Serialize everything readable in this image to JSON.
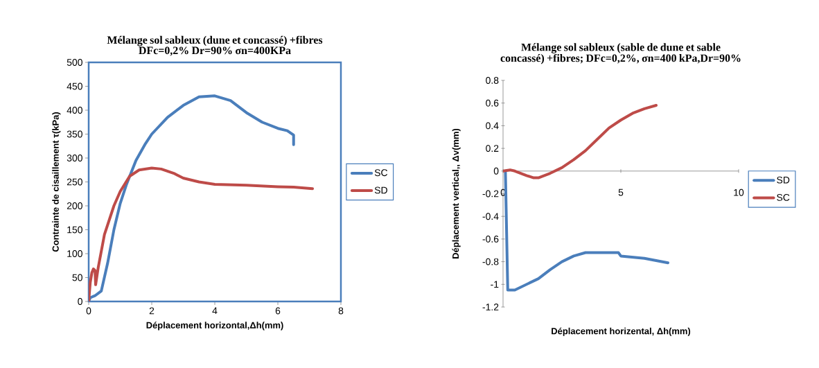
{
  "chart_data": [
    {
      "type": "line",
      "title": "Mélange sol sableux (dune et concassé) +fibres",
      "subtitle": "DFc=0,2% Dr=90% σn=400KPa",
      "xlabel": "Déplacement horizontal,Δh(mm)",
      "ylabel": "Contrainte de cisaillement τ(kPa)",
      "xlim": [
        0,
        8
      ],
      "ylim": [
        0,
        500
      ],
      "xticks": [
        0,
        2,
        4,
        6,
        8
      ],
      "yticks": [
        0,
        50,
        100,
        150,
        200,
        250,
        300,
        350,
        400,
        450,
        500
      ],
      "legend": "right",
      "series": [
        {
          "name": "SC",
          "color": "#4a7ebb",
          "x": [
            0,
            0.05,
            0.2,
            0.4,
            0.6,
            0.8,
            1.0,
            1.2,
            1.5,
            1.8,
            2.0,
            2.5,
            3.0,
            3.5,
            4.0,
            4.5,
            5.0,
            5.5,
            6.0,
            6.3,
            6.5,
            6.5
          ],
          "values": [
            0,
            8,
            12,
            22,
            80,
            150,
            205,
            245,
            295,
            330,
            350,
            385,
            410,
            428,
            430,
            420,
            395,
            375,
            362,
            357,
            348,
            328
          ]
        },
        {
          "name": "SD",
          "color": "#be4b48",
          "x": [
            0,
            0.05,
            0.1,
            0.15,
            0.2,
            0.22,
            0.3,
            0.5,
            0.8,
            1.0,
            1.3,
            1.6,
            2.0,
            2.3,
            2.7,
            3.0,
            3.5,
            4.0,
            5.0,
            6.0,
            6.5,
            7.1
          ],
          "values": [
            0,
            40,
            60,
            68,
            65,
            35,
            70,
            140,
            200,
            230,
            262,
            275,
            279,
            277,
            268,
            258,
            250,
            245,
            243,
            240,
            239,
            236
          ]
        }
      ]
    },
    {
      "type": "line",
      "title": "Mélange sol sableux (sable de dune et sable concassé) +fibres; DFc=0,2%, σn=400 kPa,Dr=90%",
      "xlabel": "Déplacement horizental, Δh(mm)",
      "ylabel": "Déplacement vertical,, Δv(mm)",
      "xlim": [
        0,
        10
      ],
      "ylim": [
        -1.2,
        0.8
      ],
      "xticks": [
        0,
        5,
        10
      ],
      "yticks": [
        -1.2,
        -1,
        -0.8,
        -0.6,
        -0.4,
        -0.2,
        0,
        0.2,
        0.4,
        0.6,
        0.8
      ],
      "legend": "right",
      "series": [
        {
          "name": "SD",
          "color": "#4a7ebb",
          "x": [
            0.1,
            0.2,
            0.5,
            1.0,
            1.5,
            2.0,
            2.5,
            3.0,
            3.5,
            4.0,
            4.9,
            5.0,
            6.0,
            6.5,
            7.0
          ],
          "values": [
            0,
            -1.05,
            -1.05,
            -1.0,
            -0.95,
            -0.87,
            -0.8,
            -0.75,
            -0.72,
            -0.72,
            -0.72,
            -0.75,
            -0.77,
            -0.79,
            -0.81
          ]
        },
        {
          "name": "SC",
          "color": "#be4b48",
          "x": [
            0,
            0.3,
            0.5,
            1.0,
            1.3,
            1.5,
            2.0,
            2.5,
            3.0,
            3.5,
            4.0,
            4.5,
            5.0,
            5.5,
            6.0,
            6.5
          ],
          "values": [
            0,
            0.01,
            0,
            -0.04,
            -0.06,
            -0.06,
            -0.02,
            0.03,
            0.1,
            0.18,
            0.28,
            0.38,
            0.45,
            0.51,
            0.55,
            0.58
          ]
        }
      ]
    }
  ]
}
